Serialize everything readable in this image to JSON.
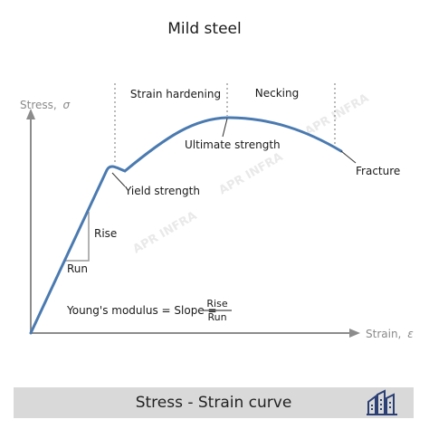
{
  "title": "Mild steel",
  "axes": {
    "y_label_text": "Stress,",
    "y_label_symbol": "σ",
    "x_label_text": "Strain,",
    "x_label_symbol": "ε"
  },
  "regions": {
    "strain_hardening": "Strain hardening",
    "necking": "Necking"
  },
  "points": {
    "ultimate_strength": "Ultimate strength",
    "yield_strength": "Yield strength",
    "fracture": "Fracture"
  },
  "slope_triangle": {
    "rise": "Rise",
    "run": "Run"
  },
  "formula": {
    "prefix": "Young's modulus = Slope =",
    "numerator": "Rise",
    "denominator": "Run"
  },
  "watermark": "APR INFRA",
  "footer": {
    "caption": "Stress - Strain curve"
  },
  "colors": {
    "curve": "#4a7ab0",
    "axis": "#8c8c8c",
    "triangle": "#8c8c8c",
    "footer_bg": "#d9d9d9",
    "logo": "#2b3f75"
  }
}
